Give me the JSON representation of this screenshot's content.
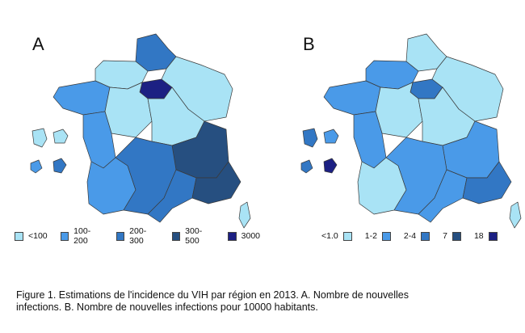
{
  "figure": {
    "caption_line1": "Figure 1. Estimations de l'incidence du VIH par région en 2013. A. Nombre de nouvelles",
    "caption_line2": "infections. B. Nombre de nouvelles infections pour 10000 habitants."
  },
  "panels": [
    {
      "letter": "A",
      "legend": [
        {
          "label": "<100",
          "color": "#a9e3f5"
        },
        {
          "label": "100-200",
          "color": "#4a9ae8"
        },
        {
          "label": "200-300",
          "color": "#3277c4"
        },
        {
          "label": "300-500",
          "color": "#264f80"
        },
        {
          "label": "3000",
          "color": "#1c2083"
        }
      ],
      "regions": {
        "north": "#3277c4",
        "brittany": "#4a9ae8",
        "normandy": "#a9e3f5",
        "idf": "#1c2083",
        "northeast": "#a9e3f5",
        "centre": "#a9e3f5",
        "westcentral": "#4a9ae8",
        "burgundy": "#a9e3f5",
        "rhonealpes": "#264f80",
        "southwest": "#4a9ae8",
        "midi": "#3277c4",
        "languedoc": "#3277c4",
        "paca": "#264f80",
        "corsica": "#a9e3f5",
        "dom1": "#a9e3f5",
        "dom2": "#a9e3f5",
        "dom3": "#4a9ae8",
        "dom4": "#3277c4"
      }
    },
    {
      "letter": "B",
      "legend": [
        {
          "label": "<1.0",
          "color": "#a9e3f5"
        },
        {
          "label": "1-2",
          "color": "#4a9ae8"
        },
        {
          "label": "2-4",
          "color": "#3277c4"
        },
        {
          "label": "7",
          "color": "#264f80"
        },
        {
          "label": "18",
          "color": "#1c2083"
        }
      ],
      "regions": {
        "north": "#a9e3f5",
        "brittany": "#4a9ae8",
        "normandy": "#4a9ae8",
        "idf": "#3277c4",
        "northeast": "#a9e3f5",
        "centre": "#a9e3f5",
        "westcentral": "#4a9ae8",
        "burgundy": "#a9e3f5",
        "rhonealpes": "#4a9ae8",
        "southwest": "#a9e3f5",
        "midi": "#4a9ae8",
        "languedoc": "#4a9ae8",
        "paca": "#3277c4",
        "corsica": "#a9e3f5",
        "dom1": "#3277c4",
        "dom2": "#4a9ae8",
        "dom3": "#3277c4",
        "dom4": "#1c2083"
      }
    }
  ]
}
